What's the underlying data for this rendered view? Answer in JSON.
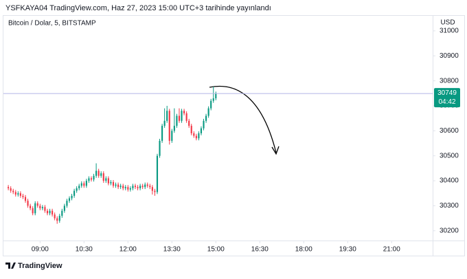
{
  "published": "YSFKAYA04 TradingView.com, Haz 27, 2023 15:00 UTC+3 tarihinde yayınlandı",
  "logo": "TradingView",
  "chart_data": {
    "type": "candlestick",
    "title": "Bitcoin / Dolar, 5, BITSTAMP",
    "y_label": "USD",
    "last_price": 30749,
    "countdown": "04:42",
    "up_color": "#089981",
    "down_color": "#f23645",
    "price_line_color": "#b2b5e8",
    "grid": false,
    "x": [
      475,
      480,
      485,
      490,
      495,
      500,
      505,
      510,
      515,
      520,
      525,
      530,
      535,
      540,
      545,
      550,
      555,
      560,
      565,
      570,
      575,
      580,
      585,
      590,
      595,
      600,
      605,
      610,
      615,
      620,
      625,
      630,
      635,
      640,
      645,
      650,
      655,
      660,
      665,
      670,
      675,
      680,
      685,
      690,
      695,
      700,
      705,
      710,
      715,
      720,
      725,
      730,
      735,
      740,
      745,
      750,
      755,
      760,
      765,
      770,
      775,
      780,
      785,
      790,
      795,
      800,
      805,
      810,
      815,
      820,
      825,
      830,
      835,
      840,
      845,
      850,
      855,
      860,
      865,
      870,
      875,
      880,
      885,
      890,
      895,
      900
    ],
    "open": [
      30375,
      30370,
      30360,
      30355,
      30345,
      30350,
      30340,
      30335,
      30320,
      30300,
      30290,
      30270,
      30310,
      30300,
      30290,
      30295,
      30280,
      30270,
      30280,
      30265,
      30250,
      30240,
      30260,
      30280,
      30300,
      30320,
      30330,
      30340,
      30360,
      30370,
      30380,
      30390,
      30380,
      30400,
      30410,
      30405,
      30420,
      30440,
      30420,
      30430,
      30400,
      30410,
      30390,
      30395,
      30380,
      30385,
      30375,
      30380,
      30370,
      30375,
      30365,
      30370,
      30380,
      30375,
      30370,
      30380,
      30375,
      30385,
      30380,
      30375,
      30360,
      30355,
      30500,
      30560,
      30620,
      30640,
      30680,
      30560,
      30600,
      30620,
      30660,
      30640,
      30680,
      30670,
      30640,
      30620,
      30590,
      30580,
      30570,
      30590,
      30610,
      30640,
      30660,
      30690,
      30720,
      30730
    ],
    "high": [
      30383,
      30378,
      30368,
      30363,
      30358,
      30358,
      30348,
      30343,
      30328,
      30308,
      30298,
      30318,
      30318,
      30308,
      30303,
      30303,
      30288,
      30288,
      30288,
      30273,
      30258,
      30268,
      30288,
      30308,
      30328,
      30338,
      30348,
      30368,
      30378,
      30388,
      30398,
      30398,
      30408,
      30418,
      30418,
      30428,
      30470,
      30448,
      30438,
      30438,
      30418,
      30418,
      30403,
      30403,
      30393,
      30393,
      30388,
      30388,
      30383,
      30383,
      30378,
      30388,
      30388,
      30383,
      30388,
      30388,
      30393,
      30393,
      30388,
      30383,
      30368,
      30508,
      30568,
      30628,
      30690,
      30700,
      30688,
      30608,
      30690,
      30668,
      30690,
      30688,
      30688,
      30678,
      30648,
      30628,
      30598,
      30588,
      30598,
      30618,
      30648,
      30668,
      30698,
      30728,
      30777,
      30757
    ],
    "low": [
      30362,
      30352,
      30347,
      30337,
      30337,
      30332,
      30327,
      30312,
      30292,
      30282,
      30262,
      30262,
      30292,
      30282,
      30282,
      30272,
      30262,
      30262,
      30257,
      30242,
      30228,
      30232,
      30252,
      30272,
      30292,
      30312,
      30322,
      30332,
      30352,
      30362,
      30372,
      30372,
      30372,
      30392,
      30397,
      30397,
      30412,
      30412,
      30412,
      30392,
      30392,
      30382,
      30382,
      30372,
      30372,
      30367,
      30367,
      30362,
      30362,
      30357,
      30357,
      30362,
      30367,
      30362,
      30362,
      30367,
      30367,
      30372,
      30367,
      30345,
      30340,
      30347,
      30492,
      30552,
      30612,
      30632,
      30545,
      30552,
      30592,
      30612,
      30632,
      30632,
      30662,
      30632,
      30612,
      30582,
      30572,
      30562,
      30562,
      30582,
      30602,
      30632,
      30652,
      30682,
      30712,
      30722
    ],
    "close": [
      30370,
      30360,
      30355,
      30345,
      30350,
      30340,
      30335,
      30320,
      30300,
      30290,
      30270,
      30310,
      30300,
      30290,
      30295,
      30280,
      30270,
      30280,
      30265,
      30250,
      30240,
      30260,
      30280,
      30300,
      30320,
      30330,
      30340,
      30360,
      30370,
      30380,
      30390,
      30380,
      30400,
      30410,
      30405,
      30420,
      30440,
      30420,
      30430,
      30400,
      30410,
      30390,
      30395,
      30380,
      30385,
      30375,
      30380,
      30370,
      30375,
      30365,
      30370,
      30380,
      30375,
      30370,
      30380,
      30375,
      30385,
      30380,
      30375,
      30360,
      30355,
      30500,
      30560,
      30620,
      30640,
      30680,
      30560,
      30600,
      30620,
      30660,
      30640,
      30680,
      30670,
      30640,
      30620,
      30590,
      30580,
      30570,
      30590,
      30610,
      30640,
      30660,
      30690,
      30720,
      30730,
      30749
    ],
    "xlim": [
      465,
      1344
    ],
    "xticks": [
      {
        "value": 540,
        "label": "09:00"
      },
      {
        "value": 630,
        "label": "10:30"
      },
      {
        "value": 720,
        "label": "12:00"
      },
      {
        "value": 810,
        "label": "13:30"
      },
      {
        "value": 900,
        "label": "15:00"
      },
      {
        "value": 990,
        "label": "16:30"
      },
      {
        "value": 1080,
        "label": "18:00"
      },
      {
        "value": 1170,
        "label": "19:30"
      },
      {
        "value": 1260,
        "label": "21:00"
      }
    ],
    "ylim": [
      30161,
      31063
    ],
    "yticks": [
      30200,
      30300,
      30400,
      30500,
      30600,
      30700,
      30800,
      30900,
      31000
    ]
  }
}
